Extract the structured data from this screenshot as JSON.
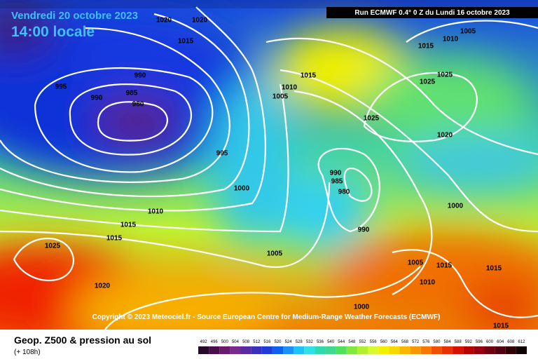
{
  "header": {
    "date": "Vendredi 20 octobre 2023",
    "time": "14:00 locale",
    "run": "Run ECMWF 0.4° 0 Z du Lundi 16 octobre 2023"
  },
  "copyright": "Copyright © 2023 Meteociel.fr - Source European Centre for Medium-Range Weather Forecasts (ECMWF)",
  "footer": {
    "title": "Geop. Z500 & pression au sol",
    "lead": "(+ 108h)"
  },
  "isobar_labels": [
    "1020",
    "1020",
    "1015",
    "990",
    "995",
    "990",
    "985",
    "980",
    "995",
    "1000",
    "1010",
    "1015",
    "1015",
    "1025",
    "1020",
    "1005",
    "1015",
    "1010",
    "1005",
    "990",
    "985",
    "980",
    "990",
    "1025",
    "1025",
    "1025",
    "1020",
    "1015",
    "1010",
    "1005",
    "1000",
    "1005",
    "1015",
    "1015",
    "1010",
    "1000",
    "1015"
  ],
  "colorbar": {
    "values": [
      492,
      496,
      500,
      504,
      508,
      512,
      516,
      520,
      524,
      528,
      532,
      536,
      540,
      544,
      548,
      552,
      556,
      560,
      564,
      568,
      572,
      576,
      580,
      584,
      588,
      592,
      596,
      600,
      604,
      608,
      612
    ],
    "colors": [
      "#2a0a2a",
      "#4a0f4a",
      "#6a1a6a",
      "#7a2a8a",
      "#5a2aa0",
      "#3a30c0",
      "#1f3cd8",
      "#1060f0",
      "#1a90f8",
      "#20c0f8",
      "#30e0e8",
      "#30d8b0",
      "#40d890",
      "#50e060",
      "#80e840",
      "#b0f030",
      "#d8f830",
      "#f0f000",
      "#f8d800",
      "#f8b800",
      "#f89800",
      "#f87800",
      "#f05000",
      "#e83000",
      "#d81000",
      "#b80000",
      "#980010",
      "#700010",
      "#500010",
      "#300008",
      "#100000"
    ]
  }
}
